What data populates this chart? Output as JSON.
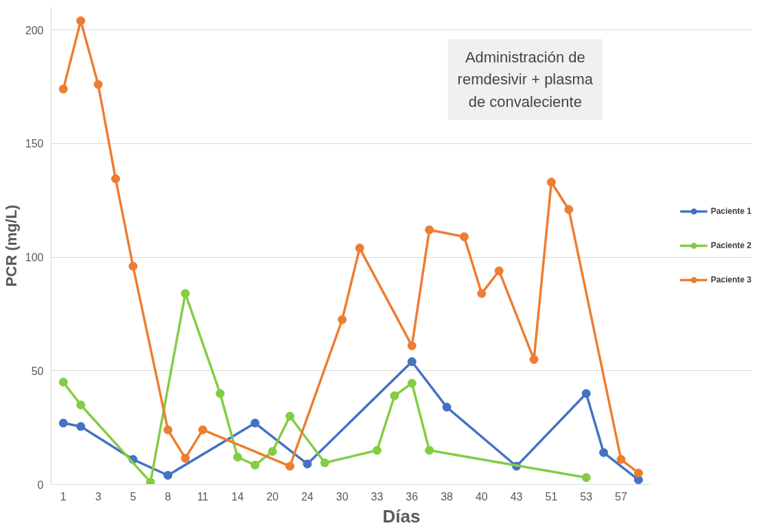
{
  "chart_data": {
    "type": "line",
    "xlabel": "Días",
    "ylabel": "PCR (mg/L)",
    "categories": [
      "1",
      null,
      "3",
      null,
      "5",
      null,
      "8",
      null,
      "11",
      null,
      "14",
      null,
      "20",
      null,
      "24",
      null,
      "30",
      null,
      "33",
      null,
      "36",
      null,
      "38",
      null,
      "40",
      null,
      "43",
      null,
      "51",
      null,
      "53",
      null,
      "57",
      null
    ],
    "series": [
      {
        "name": "Paciente 1",
        "color": "#4472c4",
        "values": [
          27,
          25.5,
          null,
          null,
          11,
          null,
          4,
          null,
          null,
          null,
          null,
          27,
          null,
          null,
          9,
          null,
          null,
          null,
          null,
          null,
          54,
          null,
          34,
          null,
          null,
          null,
          8,
          null,
          null,
          null,
          40,
          14,
          null,
          2
        ]
      },
      {
        "name": "Paciente 2",
        "color": "#84cc44",
        "values": [
          45,
          35,
          null,
          null,
          null,
          1,
          null,
          84,
          null,
          40,
          12,
          8.5,
          14.5,
          30,
          null,
          9.5,
          null,
          null,
          15,
          39,
          44.5,
          15,
          null,
          null,
          null,
          null,
          null,
          null,
          null,
          null,
          3,
          null,
          null,
          null
        ]
      },
      {
        "name": "Paciente 3",
        "color": "#ed7d31",
        "values": [
          174,
          204,
          176,
          134.5,
          96,
          null,
          24,
          11.5,
          24,
          null,
          null,
          null,
          null,
          8,
          null,
          null,
          72.5,
          104,
          null,
          null,
          61,
          112,
          null,
          109,
          84,
          94,
          null,
          55,
          133,
          121,
          null,
          null,
          11,
          5
        ]
      }
    ],
    "ylim": [
      0,
      210
    ],
    "yticks": [
      0,
      50,
      100,
      150,
      200
    ],
    "grid": "y",
    "legend": "right",
    "marker": "circle",
    "line_style": "solid",
    "annotations": [
      "Administración de remdesivir + plasma de convaleciente"
    ]
  }
}
